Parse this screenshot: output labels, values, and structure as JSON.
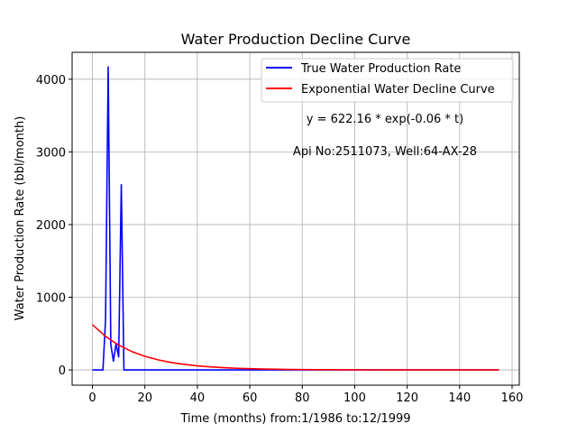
{
  "chart_data": {
    "type": "line",
    "title": "Water Production Decline Curve",
    "xlabel": "Time (months) from:1/1986 to:12/1999",
    "ylabel": "Water Production Rate (bbl/month)",
    "xlim": [
      -7.75,
      162.75
    ],
    "ylim": [
      -210,
      4370
    ],
    "xticks": [
      0,
      20,
      40,
      60,
      80,
      100,
      120,
      140,
      160
    ],
    "yticks": [
      0,
      1000,
      2000,
      3000,
      4000
    ],
    "grid": true,
    "legend_position": "top-right",
    "series": [
      {
        "name": "True Water Production Rate",
        "color": "#0000ff",
        "x": [
          0,
          1,
          2,
          3,
          4,
          5,
          6,
          7,
          8,
          9,
          10,
          11,
          12,
          13,
          20,
          40,
          60,
          80,
          100,
          120,
          140,
          155
        ],
        "y": [
          0,
          0,
          0,
          0,
          0,
          700,
          4170,
          350,
          120,
          360,
          180,
          2550,
          0,
          0,
          0,
          0,
          0,
          0,
          0,
          0,
          0,
          0
        ]
      },
      {
        "name": "Exponential Water Decline Curve",
        "color": "#ff0000",
        "x": [
          0,
          5,
          10,
          15,
          20,
          25,
          30,
          35,
          40,
          45,
          50,
          55,
          60,
          65,
          70,
          75,
          80,
          85,
          90,
          95,
          100,
          105,
          110,
          115,
          120,
          125,
          130,
          135,
          140,
          145,
          150,
          155
        ],
        "y": [
          622.16,
          460.9,
          341.4,
          252.9,
          187.4,
          138.8,
          102.8,
          76.2,
          56.4,
          41.8,
          31.0,
          22.9,
          17.0,
          12.6,
          9.3,
          6.9,
          5.1,
          3.8,
          2.8,
          2.1,
          1.5,
          1.1,
          0.8,
          0.6,
          0.5,
          0.3,
          0.3,
          0.2,
          0.1,
          0.1,
          0.1,
          0.1
        ]
      }
    ],
    "annotations": [
      "y = 622.16 * exp(-0.06 * t)",
      "Api No:2511073, Well:64-AX-28"
    ]
  }
}
